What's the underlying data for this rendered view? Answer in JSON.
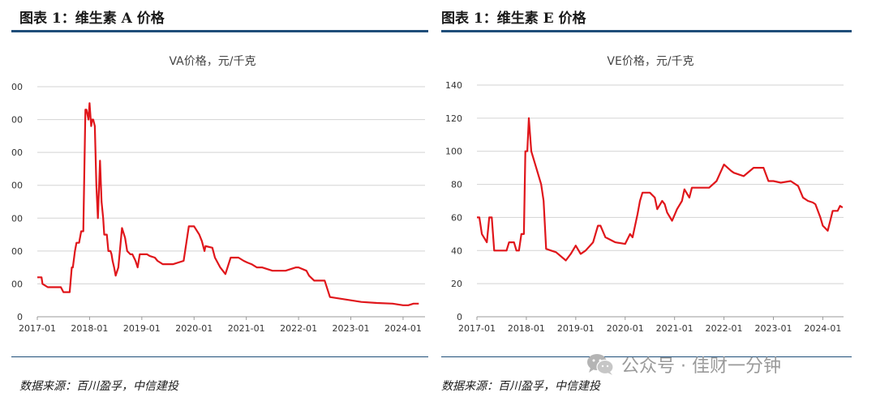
{
  "panels": [
    {
      "figure_title": "图表 1：维生素 A 价格",
      "source": "数据来源：百川盈孚，中信建投"
    },
    {
      "figure_title": "图表 1：维生素 E 价格",
      "source": "数据来源：百川盈孚，中信建投"
    }
  ],
  "watermark": {
    "text": "公众号 · 佳财一分钟",
    "icon": "wechat-icon"
  },
  "chart_data": [
    {
      "type": "line",
      "title": "VA价格，元/千克",
      "xlabel": "",
      "ylabel": "",
      "x_ticks": [
        "2017-01",
        "2018-01",
        "2019-01",
        "2020-01",
        "2021-01",
        "2022-01",
        "2023-01",
        "2024-01"
      ],
      "y_ticks": [
        "0",
        "00",
        "00",
        "00",
        "00",
        "00",
        "00",
        "00"
      ],
      "ylim": [
        0,
        700
      ],
      "grid": true,
      "color": "#e0161b",
      "series": [
        {
          "x": [
            2017.0,
            2017.08,
            2017.1,
            2017.2,
            2017.3,
            2017.45,
            2017.5,
            2017.52,
            2017.62,
            2017.66,
            2017.68,
            2017.72,
            2017.75,
            2017.8,
            2017.84,
            2017.88,
            2017.92,
            2017.94,
            2017.98,
            2018.0,
            2018.03,
            2018.05,
            2018.07,
            2018.1,
            2018.13,
            2018.16,
            2018.2,
            2018.23,
            2018.26,
            2018.28,
            2018.3,
            2018.33,
            2018.36,
            2018.4,
            2018.42,
            2018.44,
            2018.47,
            2018.5,
            2018.55,
            2018.62,
            2018.68,
            2018.72,
            2018.78,
            2018.82,
            2018.88,
            2018.92,
            2018.96,
            2019.0,
            2019.05,
            2019.1,
            2019.15,
            2019.25,
            2019.3,
            2019.4,
            2019.6,
            2019.8,
            2019.9,
            2020.0,
            2020.1,
            2020.15,
            2020.2,
            2020.22,
            2020.35,
            2020.4,
            2020.5,
            2020.6,
            2020.7,
            2020.8,
            2020.85,
            2020.95,
            2021.02,
            2021.1,
            2021.2,
            2021.3,
            2021.5,
            2021.75,
            2021.95,
            2022.0,
            2022.15,
            2022.2,
            2022.3,
            2022.35,
            2022.5,
            2022.6,
            2022.8,
            2023.0,
            2023.2,
            2023.5,
            2023.8,
            2024.0,
            2024.1,
            2024.2,
            2024.3
          ],
          "y": [
            120,
            120,
            100,
            90,
            90,
            90,
            75,
            75,
            75,
            150,
            150,
            200,
            225,
            225,
            260,
            260,
            630,
            630,
            600,
            650,
            580,
            600,
            600,
            580,
            400,
            300,
            475,
            350,
            300,
            250,
            250,
            250,
            200,
            200,
            190,
            170,
            150,
            125,
            150,
            270,
            240,
            200,
            190,
            190,
            170,
            150,
            190,
            190,
            190,
            190,
            185,
            180,
            170,
            160,
            160,
            170,
            275,
            275,
            250,
            230,
            200,
            215,
            210,
            180,
            150,
            130,
            180,
            180,
            180,
            170,
            165,
            160,
            150,
            150,
            140,
            140,
            150,
            150,
            140,
            125,
            110,
            110,
            110,
            60,
            55,
            50,
            45,
            42,
            40,
            35,
            35,
            40,
            40
          ]
        }
      ]
    },
    {
      "type": "line",
      "title": "VE价格，元/千克",
      "xlabel": "",
      "ylabel": "",
      "x_ticks": [
        "2017-01",
        "2018-01",
        "2019-01",
        "2020-01",
        "2021-01",
        "2022-01",
        "2023-01",
        "2024-01"
      ],
      "y_ticks": [
        "0",
        "20",
        "40",
        "60",
        "80",
        "100",
        "120",
        "140"
      ],
      "ylim": [
        0,
        140
      ],
      "grid": true,
      "color": "#e0161b",
      "series": [
        {
          "x": [
            2017.0,
            2017.05,
            2017.1,
            2017.2,
            2017.25,
            2017.3,
            2017.35,
            2017.4,
            2017.6,
            2017.65,
            2017.75,
            2017.8,
            2017.85,
            2017.9,
            2017.95,
            2017.98,
            2018.02,
            2018.05,
            2018.1,
            2018.2,
            2018.3,
            2018.35,
            2018.4,
            2018.5,
            2018.6,
            2018.8,
            2018.9,
            2019.0,
            2019.1,
            2019.2,
            2019.35,
            2019.45,
            2019.5,
            2019.6,
            2019.8,
            2020.0,
            2020.1,
            2020.15,
            2020.25,
            2020.3,
            2020.35,
            2020.5,
            2020.6,
            2020.65,
            2020.75,
            2020.8,
            2020.85,
            2020.95,
            2021.05,
            2021.15,
            2021.2,
            2021.3,
            2021.35,
            2021.5,
            2021.7,
            2021.85,
            2022.0,
            2022.15,
            2022.2,
            2022.4,
            2022.6,
            2022.8,
            2022.9,
            2023.0,
            2023.15,
            2023.35,
            2023.5,
            2023.6,
            2023.7,
            2023.8,
            2023.85,
            2023.95,
            2024.0,
            2024.1,
            2024.15,
            2024.2,
            2024.3,
            2024.35,
            2024.4
          ],
          "y": [
            60,
            60,
            50,
            45,
            60,
            60,
            40,
            40,
            40,
            45,
            45,
            40,
            40,
            50,
            50,
            100,
            100,
            120,
            100,
            90,
            80,
            70,
            41,
            40,
            39,
            34,
            38,
            43,
            38,
            40,
            45,
            55,
            55,
            48,
            45,
            44,
            50,
            48,
            62,
            70,
            75,
            75,
            72,
            65,
            70,
            68,
            63,
            58,
            65,
            70,
            77,
            72,
            78,
            78,
            78,
            82,
            92,
            88,
            87,
            85,
            90,
            90,
            82,
            82,
            81,
            82,
            79,
            72,
            70,
            69,
            68,
            60,
            55,
            52,
            58,
            64,
            64,
            67,
            66
          ]
        }
      ]
    }
  ]
}
